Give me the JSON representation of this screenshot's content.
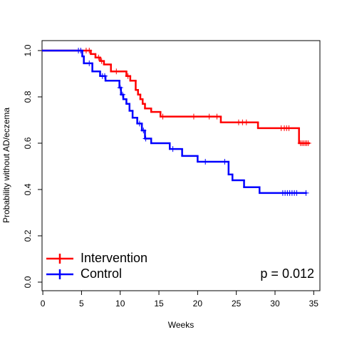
{
  "chart_data": {
    "type": "survival",
    "x_label": "Weeks",
    "y_label": "Probability without AD/eczema",
    "annotation": "p = 0.012",
    "xlim": [
      -0.1,
      35.8
    ],
    "ylim": [
      -0.037,
      1.043
    ],
    "xticks": [
      0,
      5,
      10,
      15,
      20,
      25,
      30,
      35
    ],
    "yticks": [
      {
        "value": 0,
        "label": "0.0"
      },
      {
        "value": 0.2,
        "label": "0.2"
      },
      {
        "value": 0.4,
        "label": "0.4"
      },
      {
        "value": 0.6,
        "label": "0.6"
      },
      {
        "value": 0.8,
        "label": "0.8"
      },
      {
        "value": 1,
        "label": "1.0"
      }
    ],
    "legend": "bottom-left",
    "series": [
      {
        "name": "Intervention",
        "color": "#ff0000",
        "x": [
          0,
          6.2,
          6.8,
          7.4,
          7.9,
          8.8,
          10.8,
          11.3,
          12.0,
          12.3,
          12.6,
          12.9,
          13.2,
          14.0,
          15.2,
          23.0,
          27.8,
          33.1,
          34.4
        ],
        "values": [
          1.0,
          0.985,
          0.97,
          0.955,
          0.94,
          0.91,
          0.89,
          0.87,
          0.83,
          0.81,
          0.79,
          0.77,
          0.75,
          0.735,
          0.715,
          0.69,
          0.665,
          0.6,
          0.6
        ],
        "censor_x": [
          5.6,
          6.0,
          7.2,
          7.6,
          9.5,
          11.0,
          15.5,
          19.5,
          21.5,
          22.5,
          25.3,
          25.8,
          26.3,
          30.8,
          31.2,
          31.5,
          31.8,
          33.3,
          33.5,
          33.7,
          33.9,
          34.1,
          34.3
        ],
        "censor_values": [
          1.0,
          1.0,
          0.97,
          0.955,
          0.91,
          0.89,
          0.715,
          0.715,
          0.715,
          0.715,
          0.69,
          0.69,
          0.69,
          0.665,
          0.665,
          0.665,
          0.665,
          0.6,
          0.6,
          0.6,
          0.6,
          0.6,
          0.6
        ]
      },
      {
        "name": "Control",
        "color": "#0000ff",
        "x": [
          0,
          5.1,
          5.3,
          6.4,
          7.4,
          8.1,
          9.9,
          10.1,
          10.4,
          10.8,
          11.2,
          11.6,
          12.2,
          12.8,
          13.2,
          14.0,
          16.4,
          18.0,
          20.0,
          24.0,
          24.5,
          26.0,
          28.0,
          34.0
        ],
        "values": [
          1.0,
          0.975,
          0.945,
          0.91,
          0.89,
          0.87,
          0.84,
          0.81,
          0.79,
          0.77,
          0.74,
          0.71,
          0.685,
          0.655,
          0.62,
          0.6,
          0.575,
          0.545,
          0.52,
          0.465,
          0.44,
          0.41,
          0.385,
          0.385
        ],
        "censor_x": [
          4.6,
          4.9,
          6.0,
          7.7,
          8.0,
          10.0,
          10.3,
          12.5,
          13.0,
          13.3,
          16.8,
          21.0,
          23.5,
          31.0,
          31.3,
          31.6,
          31.9,
          32.2,
          32.5,
          32.8,
          34.0
        ],
        "censor_values": [
          1.0,
          1.0,
          0.945,
          0.89,
          0.89,
          0.84,
          0.81,
          0.685,
          0.655,
          0.62,
          0.575,
          0.52,
          0.52,
          0.385,
          0.385,
          0.385,
          0.385,
          0.385,
          0.385,
          0.385,
          0.385
        ]
      }
    ]
  }
}
